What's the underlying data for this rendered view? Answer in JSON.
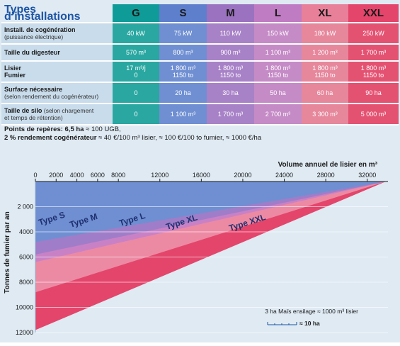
{
  "table": {
    "title": "Types d’installations",
    "columns": [
      "G",
      "S",
      "M",
      "L",
      "XL",
      "XXL"
    ],
    "rows": [
      {
        "label": "Install. de cogénération",
        "sub": "(puissance électrique)",
        "values": [
          "40 kW",
          "75 kW",
          "110 kW",
          "150 kW",
          "180 kW",
          "250 kW"
        ]
      },
      {
        "label": "Taille du digesteur",
        "sub": "",
        "values": [
          "570 m³",
          "800 m³",
          "900 m³",
          "1 100 m³",
          "1 200 m³",
          "1 700 m³"
        ]
      },
      {
        "label": "Lisier",
        "label2": "Fumier",
        "sub": "",
        "values": [
          "17 m³/j",
          "1 800 m³",
          "1 800 m³",
          "1 800 m³",
          "1 800 m³",
          "1 800 m³"
        ],
        "values2": [
          "0",
          "1150 to",
          "1150 to",
          "1150 to",
          "1150 to",
          "1150 to"
        ]
      },
      {
        "label": "Surface nécessaire",
        "sub": "(selon rendement du cogénérateur)",
        "values": [
          "0",
          "20 ha",
          "30 ha",
          "50 ha",
          "60 ha",
          "90 ha"
        ]
      },
      {
        "label": "Taille de silo",
        "sub_inline": "(selon chargement",
        "sub": "et temps de rétention)",
        "values": [
          "0",
          "1 100 m³",
          "1 700 m³",
          "2 700 m³",
          "3 300 m³",
          "5 000 m³"
        ]
      }
    ]
  },
  "notes": {
    "line1_bold": "Points de repères: 6,5 ha",
    "line1_rest": " ≈ 100 UGB,",
    "line2_bold": "2 % rendement cogénérateur",
    "line2_rest": " ≈ 40 €/100 m³ lisier, ≈ 100 €/100 to fumier, ≈ 1000 €/ha"
  },
  "chart_data": {
    "type": "area",
    "xlabel": "Volume annuel de lisier en m³",
    "ylabel": "Tonnes de fumier par an",
    "x_ticks": [
      "0",
      "2000",
      "4000",
      "6000",
      "8000",
      "12000",
      "16000",
      "20000",
      "24000",
      "28000",
      "32000"
    ],
    "y_ticks": [
      "2 000",
      "4000",
      "6000",
      "8000",
      "10000",
      "12000"
    ],
    "xlim": [
      0,
      34000
    ],
    "ylim": [
      0,
      12000
    ],
    "x_tick_values": [
      0,
      2000,
      4000,
      6000,
      8000,
      12000,
      16000,
      20000,
      24000,
      28000,
      32000
    ],
    "y_tick_values": [
      2000,
      4000,
      6000,
      8000,
      10000,
      12000
    ],
    "y_inverted": true,
    "series": [
      {
        "name": "Type XXL",
        "color": "#e4456b",
        "y_at_x0": 11800
      },
      {
        "name": "Type XL",
        "color": "#ec8aa4",
        "y_at_x0": 8800
      },
      {
        "name": "Type L",
        "color": "#c981c6",
        "y_at_x0": 6400
      },
      {
        "name": "Type M",
        "color": "#a07dc8",
        "y_at_x0": 5800
      },
      {
        "name": "Type S",
        "color": "#6f8fd2",
        "y_at_x0": 4800
      }
    ],
    "legend_note": "3 ha Maïs ensilage ≈ 1000 m³ lisier",
    "legend_scale_label": "≈ 10 ha",
    "grid": true
  }
}
